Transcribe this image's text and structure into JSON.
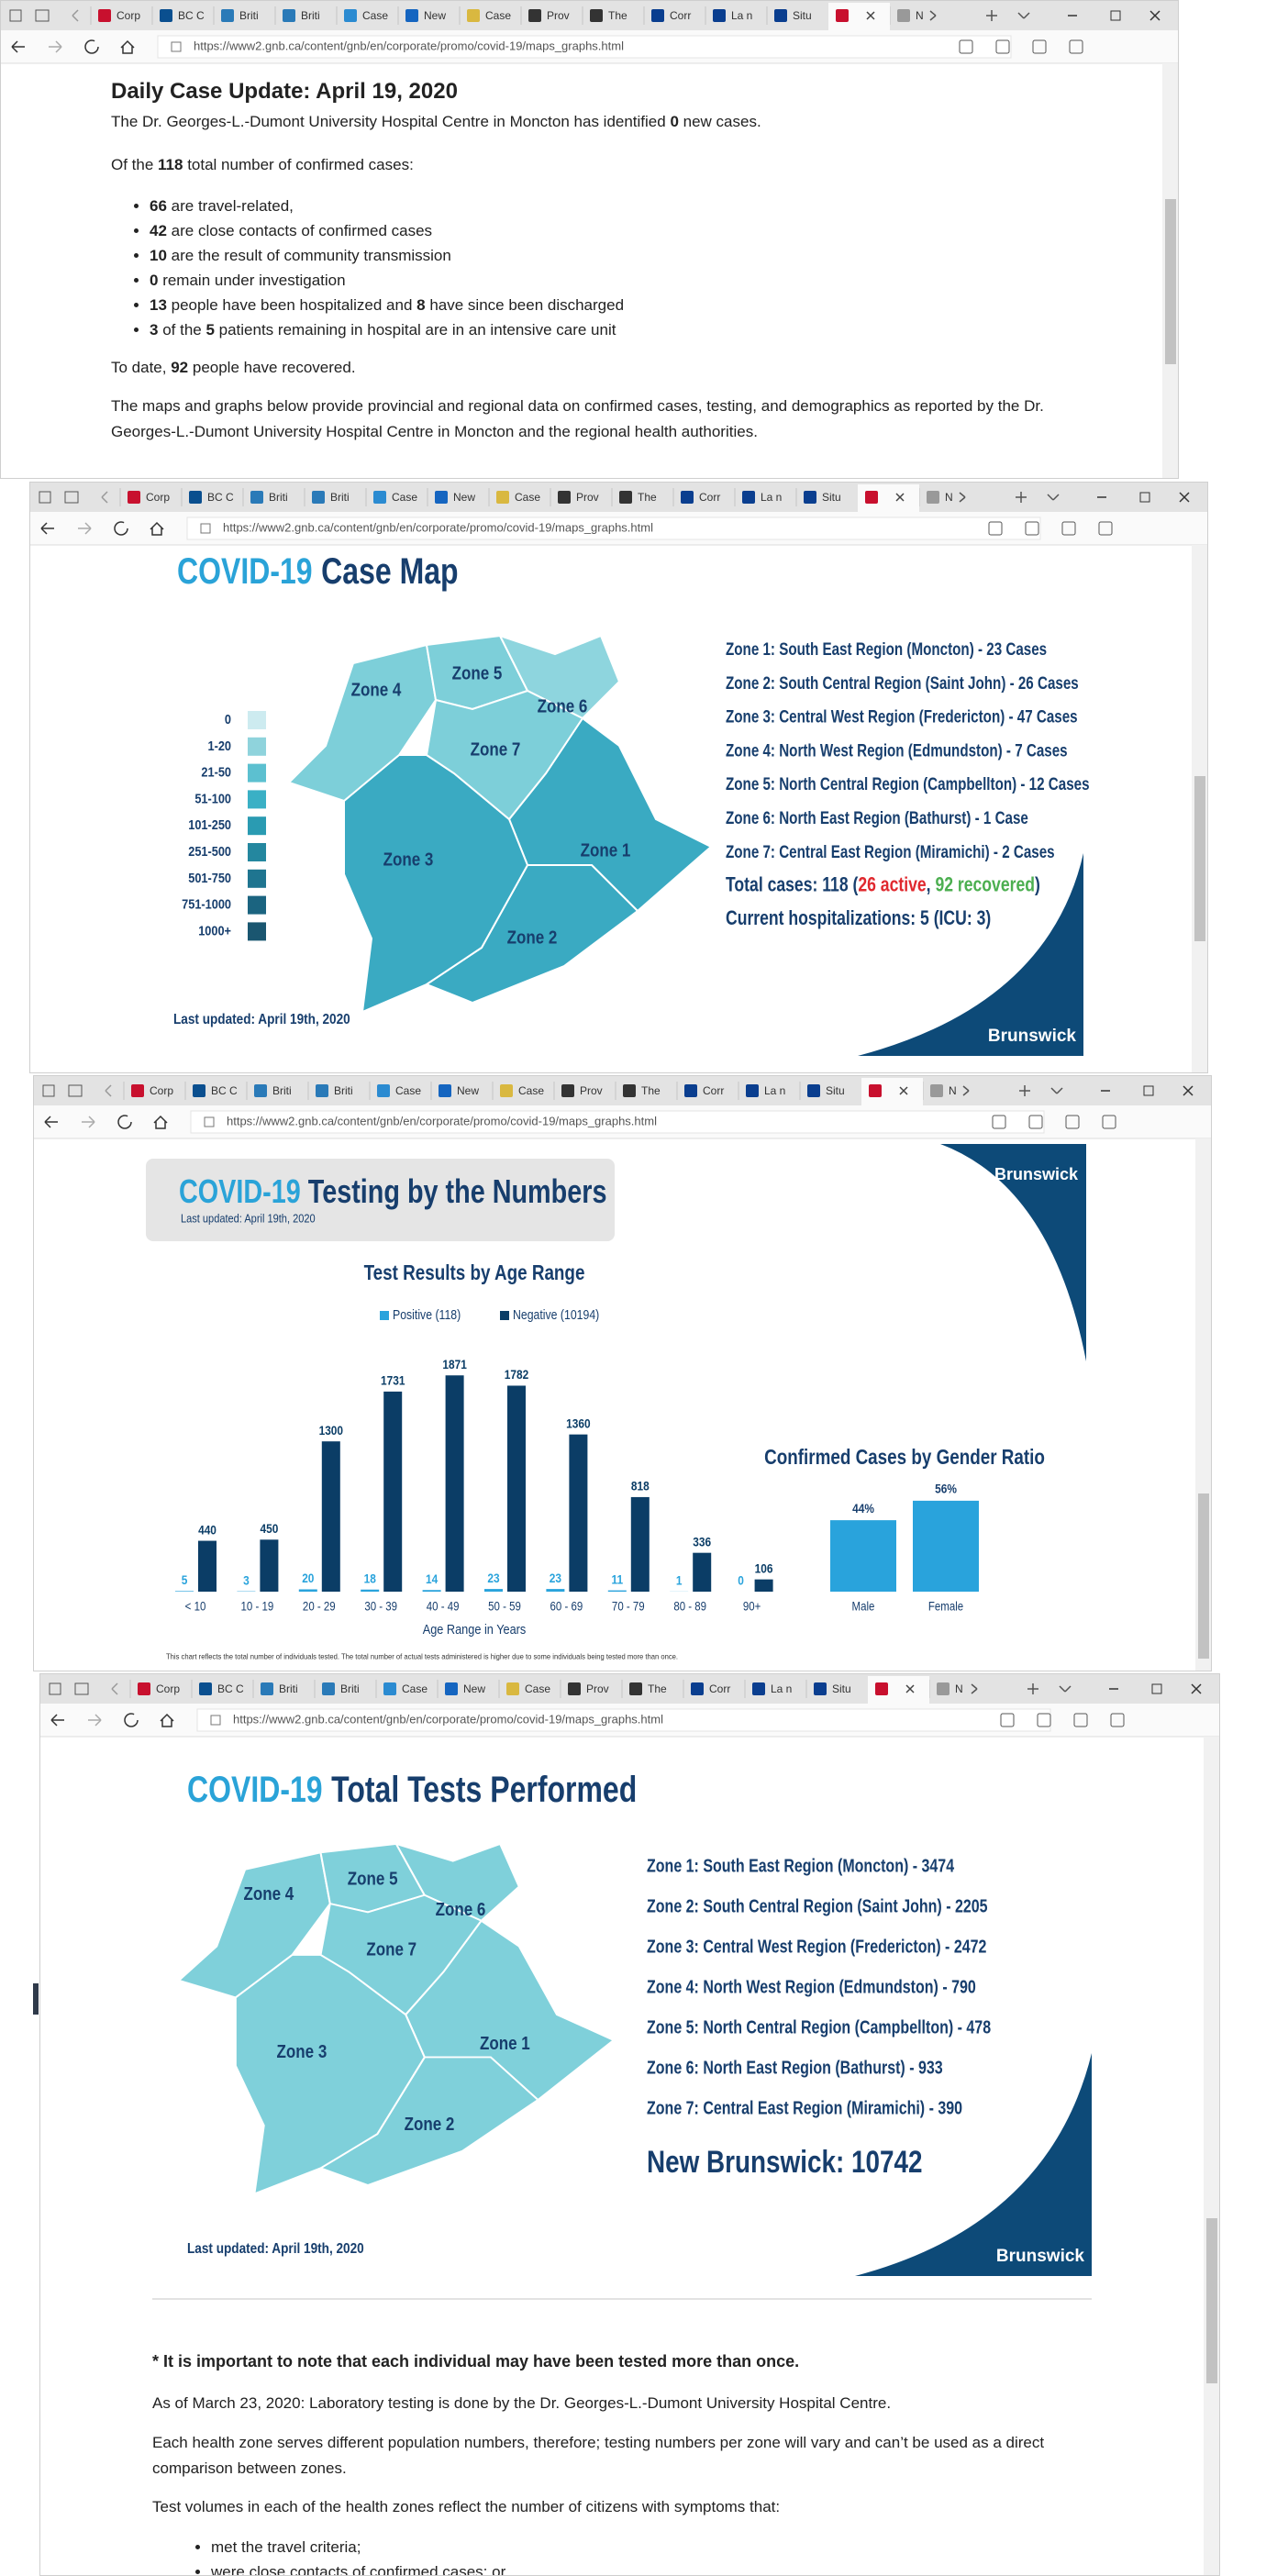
{
  "browser": {
    "tabs": [
      "Corp",
      "BC C",
      "Briti",
      "Briti",
      "Case",
      "New",
      "Case",
      "Prov",
      "The",
      "Corr",
      "La n",
      "Situ",
      "N"
    ],
    "url": "https://www2.gnb.ca/content/gnb/en/corporate/promo/covid-19/maps_graphs.html"
  },
  "daily_update": {
    "title": "Daily Case Update: April 19, 2020",
    "intro": [
      "The Dr. Georges-L.-Dumont University Hospital Centre in Moncton has identified ",
      "0",
      " new cases."
    ],
    "summary": [
      "Of the ",
      "118",
      " total number of confirmed cases:"
    ],
    "items": [
      [
        "66",
        " are travel-related,"
      ],
      [
        "42",
        " are close contacts of confirmed cases"
      ],
      [
        "10",
        " are the result of community transmission"
      ],
      [
        "0",
        " remain under investigation"
      ],
      [
        "13",
        " people have been hospitalized and ",
        "8",
        " have since been discharged"
      ],
      [
        "3",
        " of the ",
        "5",
        " patients remaining in hospital are in an intensive care unit"
      ]
    ],
    "recovered": [
      "To date, ",
      "92",
      " people have recovered."
    ],
    "note": "The maps and graphs below provide provincial and regional data on confirmed cases, testing, and demographics as reported by the Dr. Georges-L.-Dumont University Hospital Centre in Moncton and the regional health authorities."
  },
  "case_map": {
    "title_prefix": "COVID-19",
    "title": "Case Map",
    "legend": [
      {
        "label": "0",
        "color": "#cdebf0"
      },
      {
        "label": "1-20",
        "color": "#8fd3dc"
      },
      {
        "label": "21-50",
        "color": "#5cc0d0"
      },
      {
        "label": "51-100",
        "color": "#3ab0c5"
      },
      {
        "label": "101-250",
        "color": "#2a9bb2"
      },
      {
        "label": "251-500",
        "color": "#24879f"
      },
      {
        "label": "501-750",
        "color": "#1f7590"
      },
      {
        "label": "751-1000",
        "color": "#1b6480"
      },
      {
        "label": "1000+",
        "color": "#1a5670"
      }
    ],
    "zone_labels": [
      "Zone 1",
      "Zone 2",
      "Zone 3",
      "Zone 4",
      "Zone 5",
      "Zone 6",
      "Zone 7"
    ],
    "zone_colors": [
      "#3aaac2",
      "#3aaac2",
      "#3aaac2",
      "#7dcfd9",
      "#7dcfd9",
      "#8ed5de",
      "#7dcfd9"
    ],
    "zones": [
      "Zone 1: South East Region (Moncton) - 23 Cases",
      "Zone 2: South Central Region (Saint John) - 26 Cases",
      "Zone 3: Central West Region (Fredericton) - 47 Cases",
      "Zone 4: North West Region (Edmundston) - 7 Cases",
      "Zone 5: North Central Region (Campbellton) - 12 Cases",
      "Zone 6: North East Region (Bathurst) - 1 Case",
      "Zone 7: Central East Region (Miramichi) - 2 Cases"
    ],
    "total": [
      "Total cases: 118 (",
      "26 active",
      ", ",
      "92 recovered",
      ")"
    ],
    "hospitalizations": "Current hospitalizations: 5 (ICU: 3)",
    "last_updated": "Last updated: April 19th, 2020",
    "logo": "Brunswick"
  },
  "testing": {
    "title_prefix": "COVID-19",
    "title": "Testing by the Numbers",
    "last_updated": "Last updated: April 19th, 2020",
    "chart": {
      "title": "Test Results by Age Range",
      "categories": [
        "< 10",
        "10 - 19",
        "20 - 29",
        "30 - 39",
        "40 - 49",
        "50 - 59",
        "60 - 69",
        "70 - 79",
        "80 - 89",
        "90+"
      ],
      "series": [
        {
          "name": "Positive (118)",
          "color": "#29a3dc",
          "values": [
            5,
            3,
            20,
            18,
            14,
            23,
            23,
            11,
            1,
            0
          ]
        },
        {
          "name": "Negative (10194)",
          "color": "#0b3d66",
          "values": [
            440,
            450,
            1300,
            1731,
            1871,
            1782,
            1360,
            818,
            336,
            106
          ]
        }
      ],
      "x_label": "Age Range in Years"
    },
    "note": "This chart reflects the total number of individuals tested. The total number of actual tests administered is higher due to some individuals being tested more than once.",
    "gender_chart": {
      "title": "Confirmed Cases by Gender Ratio",
      "categories": [
        "Male",
        "Female"
      ],
      "values": [
        44,
        56
      ],
      "value_labels": [
        "44%",
        "56%"
      ],
      "color": "#29a3dc"
    }
  },
  "tests": {
    "title_prefix": "COVID-19",
    "title": "Total Tests Performed",
    "zone_colors": [
      "#7fd0da",
      "#7fd0da",
      "#7fd0da",
      "#7fd0da",
      "#7fd0da",
      "#7fd0da",
      "#7fd0da"
    ],
    "zones": [
      "Zone 1: South East Region (Moncton) - 3474",
      "Zone 2: South Central Region (Saint John) - 2205",
      "Zone 3: Central West Region (Fredericton) - 2472",
      "Zone 4: North West Region (Edmundston) - 790",
      "Zone 5: North Central Region (Campbellton) - 478",
      "Zone 6: North East Region (Bathurst) - 933",
      "Zone 7: Central East Region (Miramichi) - 390"
    ],
    "total": "New Brunswick: 10742",
    "last_updated": "Last updated: April 19th, 2020"
  },
  "notes": {
    "important": "* It is important to note that each individual may have been tested more than once.",
    "lab": "As of March 23, 2020: Laboratory testing is done by the Dr. Georges-L.-Dumont University Hospital Centre.",
    "zones": "Each health zone serves different population numbers, therefore; testing numbers per zone will vary and can’t be used as a direct comparison between zones.",
    "volumes": "Test volumes in each of the health zones reflect the number of citizens with symptoms that:",
    "criteria": [
      "met the travel criteria;",
      "were close contacts of confirmed cases; or"
    ]
  }
}
